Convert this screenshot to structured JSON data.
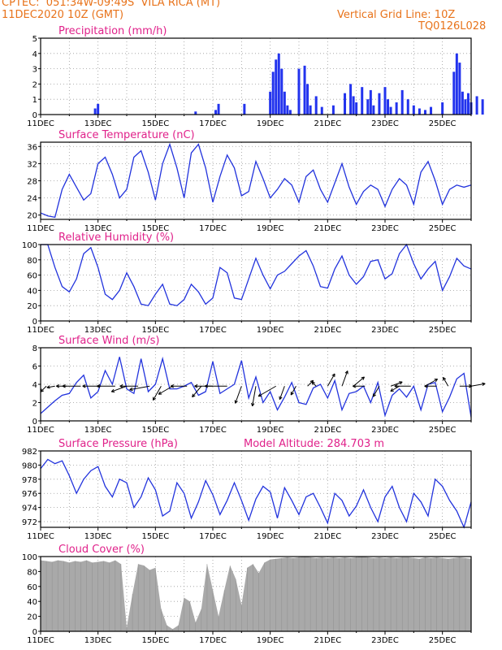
{
  "header": {
    "source_line": "CPTEC:  051:34W-09:49S  VILA RICA (MT)",
    "date_line": "11DEC2020 10Z (GMT)",
    "grid_line_label": "Vertical Grid Line: 10Z",
    "run_id": "TQ0126L028"
  },
  "colors": {
    "header": "#e8731b",
    "panel_title": "#e0218a",
    "series": "#2233dd",
    "precip_bar": "#2233ee",
    "cloud_fill": "#a9a9a9",
    "wind_arrow": "#000000"
  },
  "chart_data": [
    {
      "type": "bar",
      "title": "Precipitation (mm/h)",
      "ylim": [
        0,
        5
      ],
      "yticks": [
        0,
        1,
        2,
        3,
        4,
        5
      ],
      "x_tick_labels": [
        "11DEC",
        "13DEC",
        "15DEC",
        "17DEC",
        "19DEC",
        "21DEC",
        "23DEC",
        "25DEC"
      ],
      "x": [
        1.9,
        2.0,
        5.4,
        6.1,
        6.2,
        7.1,
        8.0,
        8.1,
        8.2,
        8.3,
        8.4,
        8.5,
        8.6,
        8.7,
        9.0,
        9.2,
        9.3,
        9.4,
        9.6,
        9.8,
        10.2,
        10.6,
        10.8,
        10.9,
        11.0,
        11.2,
        11.4,
        11.5,
        11.6,
        11.8,
        12.0,
        12.1,
        12.2,
        12.4,
        12.6,
        12.8,
        13.0,
        13.2,
        13.4,
        13.6,
        14.0,
        14.4,
        14.5,
        14.6,
        14.7,
        14.8,
        14.9,
        15.0,
        15.2,
        15.4
      ],
      "values": [
        0.4,
        0.7,
        0.2,
        0.3,
        0.7,
        0.7,
        1.5,
        2.8,
        3.6,
        4.0,
        3.0,
        1.5,
        0.6,
        0.3,
        3.0,
        3.2,
        2.0,
        0.6,
        1.2,
        0.5,
        0.6,
        1.4,
        2.0,
        1.2,
        0.8,
        1.8,
        1.0,
        1.6,
        0.6,
        1.4,
        1.8,
        1.0,
        0.5,
        0.8,
        1.6,
        1.0,
        0.6,
        0.4,
        0.3,
        0.5,
        0.8,
        2.8,
        4.0,
        3.4,
        1.5,
        1.0,
        1.4,
        0.8,
        1.2,
        1.0
      ]
    },
    {
      "type": "line",
      "title": "Surface Temperature (nC)",
      "ylim": [
        19,
        37
      ],
      "yticks": [
        20,
        24,
        28,
        32,
        36
      ],
      "x_tick_labels": [
        "11DEC",
        "13DEC",
        "15DEC",
        "17DEC",
        "19DEC",
        "21DEC",
        "23DEC",
        "25DEC"
      ],
      "x": [
        0,
        0.25,
        0.5,
        0.75,
        1.0,
        1.25,
        1.5,
        1.75,
        2.0,
        2.25,
        2.5,
        2.75,
        3.0,
        3.25,
        3.5,
        3.75,
        4.0,
        4.25,
        4.5,
        4.75,
        5.0,
        5.25,
        5.5,
        5.75,
        6.0,
        6.25,
        6.5,
        6.75,
        7.0,
        7.25,
        7.5,
        7.75,
        8.0,
        8.25,
        8.5,
        8.75,
        9.0,
        9.25,
        9.5,
        9.75,
        10.0,
        10.25,
        10.5,
        10.75,
        11.0,
        11.25,
        11.5,
        11.75,
        12.0,
        12.25,
        12.5,
        12.75,
        13.0,
        13.25,
        13.5,
        13.75,
        14.0,
        14.25,
        14.5,
        14.75,
        15.0
      ],
      "values": [
        20.5,
        19.8,
        19.5,
        26.0,
        29.5,
        26.5,
        23.5,
        25.0,
        32.0,
        33.5,
        29.5,
        24.0,
        26.0,
        33.5,
        35.0,
        30.0,
        23.5,
        32.0,
        36.5,
        31.0,
        24.0,
        34.5,
        36.5,
        31.0,
        23.0,
        29.0,
        34.0,
        31.0,
        24.5,
        25.5,
        32.5,
        28.5,
        24.0,
        26.0,
        28.5,
        27.0,
        23.0,
        29.0,
        30.5,
        26.0,
        23.0,
        27.5,
        32.0,
        26.5,
        22.5,
        25.5,
        27.0,
        26.0,
        22.0,
        26.0,
        28.5,
        27.0,
        22.5,
        30.0,
        32.5,
        28.0,
        22.5,
        26.0,
        27.0,
        26.5,
        27.0
      ]
    },
    {
      "type": "line",
      "title": "Relative Humidity (%)",
      "ylim": [
        0,
        100
      ],
      "yticks": [
        0,
        20,
        40,
        60,
        80,
        100
      ],
      "x_tick_labels": [
        "11DEC",
        "13DEC",
        "15DEC",
        "17DEC",
        "19DEC",
        "21DEC",
        "23DEC",
        "25DEC"
      ],
      "x": [
        0,
        0.25,
        0.5,
        0.75,
        1.0,
        1.25,
        1.5,
        1.75,
        2.0,
        2.25,
        2.5,
        2.75,
        3.0,
        3.25,
        3.5,
        3.75,
        4.0,
        4.25,
        4.5,
        4.75,
        5.0,
        5.25,
        5.5,
        5.75,
        6.0,
        6.25,
        6.5,
        6.75,
        7.0,
        7.25,
        7.5,
        7.75,
        8.0,
        8.25,
        8.5,
        8.75,
        9.0,
        9.25,
        9.5,
        9.75,
        10.0,
        10.25,
        10.5,
        10.75,
        11.0,
        11.25,
        11.5,
        11.75,
        12.0,
        12.25,
        12.5,
        12.75,
        13.0,
        13.25,
        13.5,
        13.75,
        14.0,
        14.25,
        14.5,
        14.75,
        15.0
      ],
      "values": [
        100,
        100,
        70,
        45,
        38,
        55,
        88,
        96,
        70,
        35,
        28,
        40,
        63,
        45,
        22,
        20,
        35,
        48,
        22,
        20,
        28,
        48,
        38,
        22,
        30,
        70,
        63,
        30,
        28,
        55,
        82,
        60,
        42,
        60,
        65,
        75,
        85,
        92,
        72,
        45,
        43,
        68,
        85,
        60,
        48,
        58,
        78,
        80,
        55,
        62,
        88,
        100,
        75,
        55,
        68,
        78,
        40,
        58,
        82,
        72,
        68
      ]
    },
    {
      "type": "line",
      "title": "Surface Wind (m/s)",
      "ylim": [
        0,
        8
      ],
      "yticks": [
        0,
        2,
        4,
        6,
        8
      ],
      "x_tick_labels": [
        "11DEC",
        "13DEC",
        "15DEC",
        "17DEC",
        "19DEC",
        "21DEC",
        "23DEC",
        "25DEC"
      ],
      "x": [
        0,
        0.25,
        0.5,
        0.75,
        1.0,
        1.25,
        1.5,
        1.75,
        2.0,
        2.25,
        2.5,
        2.75,
        3.0,
        3.25,
        3.5,
        3.75,
        4.0,
        4.25,
        4.5,
        4.75,
        5.0,
        5.25,
        5.5,
        5.75,
        6.0,
        6.25,
        6.5,
        6.75,
        7.0,
        7.25,
        7.5,
        7.75,
        8.0,
        8.25,
        8.5,
        8.75,
        9.0,
        9.25,
        9.5,
        9.75,
        10.0,
        10.25,
        10.5,
        10.75,
        11.0,
        11.25,
        11.5,
        11.75,
        12.0,
        12.25,
        12.5,
        12.75,
        13.0,
        13.25,
        13.5,
        13.75,
        14.0,
        14.25,
        14.5,
        14.75,
        15.0
      ],
      "values": [
        0.8,
        1.5,
        2.2,
        2.8,
        3.0,
        4.2,
        5.0,
        2.5,
        3.2,
        5.5,
        4.0,
        7.0,
        3.5,
        3.0,
        6.8,
        3.2,
        4.0,
        6.8,
        3.5,
        3.5,
        3.8,
        4.2,
        2.8,
        3.2,
        6.5,
        3.0,
        3.5,
        4.0,
        6.6,
        2.5,
        4.8,
        2.0,
        3.2,
        1.2,
        2.6,
        4.2,
        2.0,
        1.8,
        3.6,
        4.0,
        2.5,
        4.4,
        1.2,
        3.0,
        3.2,
        3.8,
        2.0,
        4.2,
        0.6,
        2.8,
        3.5,
        2.6,
        3.8,
        1.2,
        4.0,
        4.2,
        1.0,
        2.6,
        4.6,
        5.2,
        0.4
      ]
    },
    {
      "type": "line",
      "title": "Surface Pressure (hPa)",
      "annotation": "Model Altitude: 284.703 m",
      "ylim": [
        971.2,
        982
      ],
      "yticks": [
        972,
        974,
        976,
        978,
        980,
        982
      ],
      "x_tick_labels": [
        "11DEC",
        "13DEC",
        "15DEC",
        "17DEC",
        "19DEC",
        "21DEC",
        "23DEC",
        "25DEC"
      ],
      "x": [
        0,
        0.25,
        0.5,
        0.75,
        1.0,
        1.25,
        1.5,
        1.75,
        2.0,
        2.25,
        2.5,
        2.75,
        3.0,
        3.25,
        3.5,
        3.75,
        4.0,
        4.25,
        4.5,
        4.75,
        5.0,
        5.25,
        5.5,
        5.75,
        6.0,
        6.25,
        6.5,
        6.75,
        7.0,
        7.25,
        7.5,
        7.75,
        8.0,
        8.25,
        8.5,
        8.75,
        9.0,
        9.25,
        9.5,
        9.75,
        10.0,
        10.25,
        10.5,
        10.75,
        11.0,
        11.25,
        11.5,
        11.75,
        12.0,
        12.25,
        12.5,
        12.75,
        13.0,
        13.25,
        13.5,
        13.75,
        14.0,
        14.25,
        14.5,
        14.75,
        15.0
      ],
      "values": [
        979.5,
        980.8,
        980.2,
        980.6,
        978.5,
        976.0,
        978.0,
        979.2,
        979.8,
        977.0,
        975.5,
        978.0,
        977.5,
        974.0,
        975.5,
        978.2,
        976.5,
        972.8,
        973.5,
        977.5,
        976.0,
        972.5,
        974.8,
        977.8,
        975.8,
        973.0,
        975.0,
        977.5,
        975.0,
        972.2,
        975.2,
        977.0,
        976.2,
        972.5,
        976.8,
        975.0,
        973.0,
        975.5,
        976.0,
        974.0,
        971.8,
        976.0,
        975.0,
        972.8,
        974.2,
        976.5,
        974.0,
        972.0,
        975.5,
        977.0,
        974.0,
        972.0,
        976.0,
        974.8,
        972.8,
        978.0,
        977.0,
        975.0,
        973.5,
        971.2,
        974.8
      ]
    },
    {
      "type": "area",
      "title": "Cloud Cover (%)",
      "ylim": [
        0,
        100
      ],
      "yticks": [
        0,
        20,
        40,
        60,
        80,
        100
      ],
      "x_tick_labels": [
        "11DEC",
        "13DEC",
        "15DEC",
        "17DEC",
        "19DEC",
        "21DEC",
        "23DEC",
        "25DEC"
      ],
      "x": [
        0,
        0.2,
        0.4,
        0.6,
        0.8,
        1.0,
        1.2,
        1.4,
        1.6,
        1.8,
        2.0,
        2.2,
        2.4,
        2.6,
        2.8,
        3.0,
        3.2,
        3.4,
        3.6,
        3.8,
        4.0,
        4.2,
        4.4,
        4.6,
        4.8,
        5.0,
        5.2,
        5.4,
        5.6,
        5.8,
        6.0,
        6.2,
        6.4,
        6.6,
        6.8,
        7.0,
        7.2,
        7.4,
        7.6,
        7.8,
        8.0,
        8.2,
        8.4,
        8.6,
        8.8,
        9.0,
        9.2,
        9.4,
        9.6,
        9.8,
        10.0,
        10.2,
        10.4,
        10.6,
        10.8,
        11.0,
        11.2,
        11.4,
        11.6,
        11.8,
        12.0,
        12.2,
        12.4,
        12.6,
        12.8,
        13.0,
        13.2,
        13.4,
        13.6,
        13.8,
        14.0,
        14.2,
        14.4,
        14.6,
        14.8,
        15.0
      ],
      "values": [
        95,
        94,
        93,
        95,
        94,
        92,
        94,
        93,
        95,
        92,
        93,
        94,
        92,
        95,
        90,
        5,
        50,
        90,
        88,
        82,
        85,
        30,
        8,
        3,
        8,
        45,
        40,
        12,
        30,
        90,
        55,
        20,
        55,
        88,
        70,
        35,
        85,
        90,
        78,
        92,
        96,
        97,
        98,
        99,
        98,
        99,
        100,
        99,
        98,
        99,
        98,
        99,
        98,
        99,
        98,
        99,
        100,
        99,
        98,
        99,
        98,
        99,
        98,
        99,
        99,
        98,
        97,
        99,
        98,
        99,
        98,
        97,
        98,
        99,
        98,
        97
      ]
    }
  ],
  "wind_arrows": {
    "x": [
      0.2,
      0.5,
      0.9,
      1.4,
      2.1,
      2.6,
      3.0,
      3.4,
      3.8,
      4.2,
      4.6,
      5.1,
      5.6,
      6.0,
      6.5,
      7.0,
      7.5,
      8.2,
      8.5,
      8.9,
      9.3,
      9.6,
      10.0,
      10.5,
      10.9,
      11.3,
      11.8,
      12.2,
      12.5,
      12.9,
      13.4,
      13.8,
      14.2,
      14.6,
      15.0
    ],
    "speed": [
      1.0,
      1.0,
      1.5,
      3.5,
      3.5,
      3.5,
      3.0,
      3.5,
      4.0,
      3.0,
      3.0,
      3.0,
      2.5,
      3.5,
      4.5,
      3.5,
      4.0,
      4.0,
      2.5,
      1.5,
      1.0,
      0.5,
      2.5,
      3.0,
      2.5,
      2.0,
      2.0,
      2.0,
      1.5,
      3.0,
      2.5,
      2.0,
      1.5,
      2.0,
      2.5
    ],
    "dir_from_deg": [
      45,
      80,
      90,
      90,
      90,
      90,
      70,
      90,
      80,
      30,
      60,
      90,
      40,
      90,
      90,
      20,
      10,
      60,
      20,
      30,
      225,
      135,
      210,
      200,
      230,
      90,
      30,
      250,
      60,
      90,
      240,
      90,
      150,
      270,
      260
    ]
  }
}
